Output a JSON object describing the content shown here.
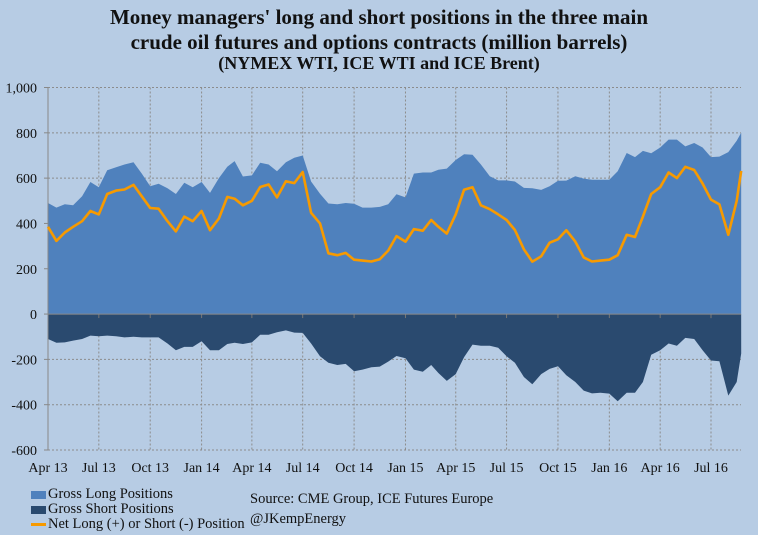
{
  "chart_data": {
    "type": "area",
    "title": [
      "Money managers' long and short positions in the three main",
      "crude oil futures and options contracts (million barrels)",
      "(NYMEX WTI, ICE WTI and ICE Brent)"
    ],
    "ylim": [
      -600,
      1000
    ],
    "yticks": [
      1000,
      800,
      600,
      400,
      200,
      0,
      -200,
      -400,
      -600
    ],
    "ytick_labels": [
      "1,000",
      "800",
      "600",
      "400",
      "200",
      "0",
      "-200",
      "-400",
      "-600"
    ],
    "xlim": [
      "2013-04-01",
      "2016-08-24"
    ],
    "xticks": [
      "2013-04-01",
      "2013-07-01",
      "2013-10-01",
      "2014-01-01",
      "2014-04-01",
      "2014-07-01",
      "2014-10-01",
      "2015-01-01",
      "2015-04-01",
      "2015-07-01",
      "2015-10-01",
      "2016-01-01",
      "2016-04-01",
      "2016-07-01"
    ],
    "xtick_labels": [
      "Apr 13",
      "Jul 13",
      "Oct 13",
      "Jan 14",
      "Apr 14",
      "Jul 14",
      "Oct 14",
      "Jan 15",
      "Apr 15",
      "Jul 15",
      "Oct 15",
      "Jan 16",
      "Apr 16",
      "Jul 16"
    ],
    "grid": true,
    "legend_position": "bottom-left",
    "x": [
      "2013-04-01",
      "2013-04-16",
      "2013-05-01",
      "2013-05-16",
      "2013-06-01",
      "2013-06-16",
      "2013-07-01",
      "2013-07-16",
      "2013-08-01",
      "2013-08-16",
      "2013-09-01",
      "2013-09-16",
      "2013-10-01",
      "2013-10-16",
      "2013-11-01",
      "2013-11-16",
      "2013-12-01",
      "2013-12-16",
      "2014-01-01",
      "2014-01-16",
      "2014-02-01",
      "2014-02-16",
      "2014-03-01",
      "2014-03-16",
      "2014-04-01",
      "2014-04-16",
      "2014-05-01",
      "2014-05-16",
      "2014-06-01",
      "2014-06-16",
      "2014-07-01",
      "2014-07-16",
      "2014-08-01",
      "2014-08-16",
      "2014-09-01",
      "2014-09-16",
      "2014-10-01",
      "2014-10-16",
      "2014-11-01",
      "2014-11-16",
      "2014-12-01",
      "2014-12-16",
      "2015-01-01",
      "2015-01-16",
      "2015-02-01",
      "2015-02-16",
      "2015-03-01",
      "2015-03-16",
      "2015-04-01",
      "2015-04-16",
      "2015-05-01",
      "2015-05-16",
      "2015-06-01",
      "2015-06-16",
      "2015-07-01",
      "2015-07-16",
      "2015-08-01",
      "2015-08-16",
      "2015-09-01",
      "2015-09-16",
      "2015-10-01",
      "2015-10-16",
      "2015-11-01",
      "2015-11-16",
      "2015-12-01",
      "2015-12-16",
      "2016-01-01",
      "2016-01-16",
      "2016-02-01",
      "2016-02-16",
      "2016-03-01",
      "2016-03-16",
      "2016-04-01",
      "2016-04-16",
      "2016-05-01",
      "2016-05-16",
      "2016-06-01",
      "2016-06-16",
      "2016-07-01",
      "2016-07-16",
      "2016-08-01",
      "2016-08-16",
      "2016-08-24"
    ],
    "series": [
      {
        "name": "Gross Long Positions",
        "kind": "area",
        "color": "#4f81bd",
        "values": [
          490,
          470,
          485,
          480,
          520,
          583,
          560,
          635,
          648,
          660,
          670,
          620,
          564,
          575,
          555,
          530,
          580,
          560,
          583,
          535,
          600,
          650,
          675,
          607,
          612,
          668,
          660,
          630,
          670,
          690,
          700,
          585,
          531,
          488,
          485,
          490,
          487,
          470,
          470,
          473,
          485,
          529,
          515,
          620,
          625,
          625,
          637,
          642,
          680,
          705,
          703,
          660,
          608,
          590,
          590,
          585,
          557,
          555,
          548,
          564,
          588,
          589,
          608,
          598,
          593,
          593,
          593,
          630,
          711,
          693,
          720,
          710,
          735,
          770,
          770,
          740,
          755,
          735,
          693,
          695,
          715,
          765,
          800
        ]
      },
      {
        "name": "Gross Short Positions",
        "kind": "area",
        "color": "#2a4a6f",
        "values": [
          -110,
          -127,
          -125,
          -117,
          -110,
          -95,
          -98,
          -95,
          -98,
          -103,
          -100,
          -103,
          -103,
          -103,
          -130,
          -160,
          -145,
          -145,
          -120,
          -160,
          -160,
          -132,
          -127,
          -132,
          -125,
          -91,
          -91,
          -80,
          -72,
          -82,
          -83,
          -130,
          -186,
          -215,
          -225,
          -220,
          -252,
          -245,
          -235,
          -232,
          -210,
          -185,
          -195,
          -245,
          -255,
          -225,
          -260,
          -295,
          -265,
          -190,
          -135,
          -140,
          -140,
          -149,
          -186,
          -215,
          -278,
          -310,
          -265,
          -242,
          -230,
          -270,
          -300,
          -338,
          -350,
          -347,
          -351,
          -385,
          -347,
          -347,
          -300,
          -180,
          -160,
          -130,
          -140,
          -105,
          -110,
          -160,
          -205,
          -208,
          -360,
          -300,
          -174
        ]
      },
      {
        "name": "Net Long (+) or Short (-) Position",
        "kind": "line",
        "color": "#f79a00",
        "values": [
          385,
          323,
          360,
          385,
          410,
          455,
          440,
          530,
          545,
          550,
          570,
          520,
          468,
          465,
          410,
          365,
          430,
          410,
          455,
          370,
          422,
          517,
          509,
          480,
          500,
          561,
          572,
          515,
          586,
          578,
          627,
          447,
          400,
          268,
          260,
          270,
          240,
          236,
          232,
          242,
          280,
          344,
          320,
          375,
          368,
          415,
          385,
          355,
          440,
          549,
          560,
          480,
          463,
          440,
          415,
          371,
          286,
          231,
          255,
          315,
          330,
          370,
          320,
          250,
          232,
          236,
          240,
          260,
          350,
          340,
          430,
          530,
          560,
          625,
          600,
          650,
          636,
          576,
          505,
          484,
          350,
          500,
          632
        ]
      }
    ]
  },
  "source": "Source:  CME Group, ICE Futures Europe",
  "handle": "@JKempEnergy"
}
